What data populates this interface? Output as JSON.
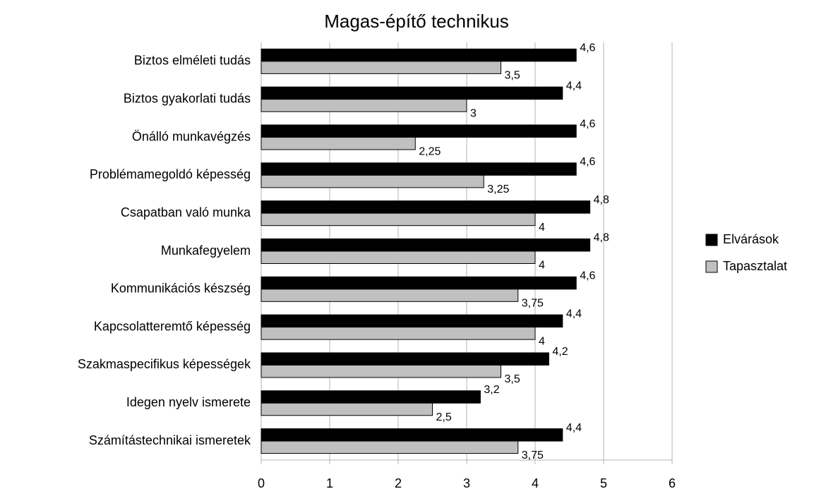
{
  "chart_data": {
    "type": "bar",
    "orientation": "horizontal",
    "title": "Magas-építő technikus",
    "categories": [
      "Biztos elméleti tudás",
      "Biztos gyakorlati tudás",
      "Önálló munkavégzés",
      "Problémamegoldó képesség",
      "Csapatban való munka",
      "Munkafegyelem",
      "Kommunikációs készség",
      "Kapcsolatteremtő képesség",
      "Szakmaspecifikus képességek",
      "Idegen nyelv ismerete",
      "Számítástechnikai ismeretek"
    ],
    "series": [
      {
        "name": "Elvárások",
        "color": "#000000",
        "values": [
          4.6,
          4.4,
          4.6,
          4.6,
          4.8,
          4.8,
          4.6,
          4.4,
          4.2,
          3.2,
          4.4
        ],
        "value_labels": [
          "4,6",
          "4,4",
          "4,6",
          "4,6",
          "4,8",
          "4,8",
          "4,6",
          "4,4",
          "4,2",
          "3,2",
          "4,4"
        ]
      },
      {
        "name": "Tapasztalat",
        "color": "#c0c0c0",
        "values": [
          3.5,
          3,
          2.25,
          3.25,
          4,
          4,
          3.75,
          4,
          3.5,
          2.5,
          3.75
        ],
        "value_labels": [
          "3,5",
          "3",
          "2,25",
          "3,25",
          "4",
          "4",
          "3,75",
          "4",
          "3,5",
          "2,5",
          "3,75"
        ]
      }
    ],
    "xlim": [
      0,
      6
    ],
    "xticks": [
      0,
      1,
      2,
      3,
      4,
      5,
      6
    ],
    "grid": true,
    "legend": "right"
  }
}
